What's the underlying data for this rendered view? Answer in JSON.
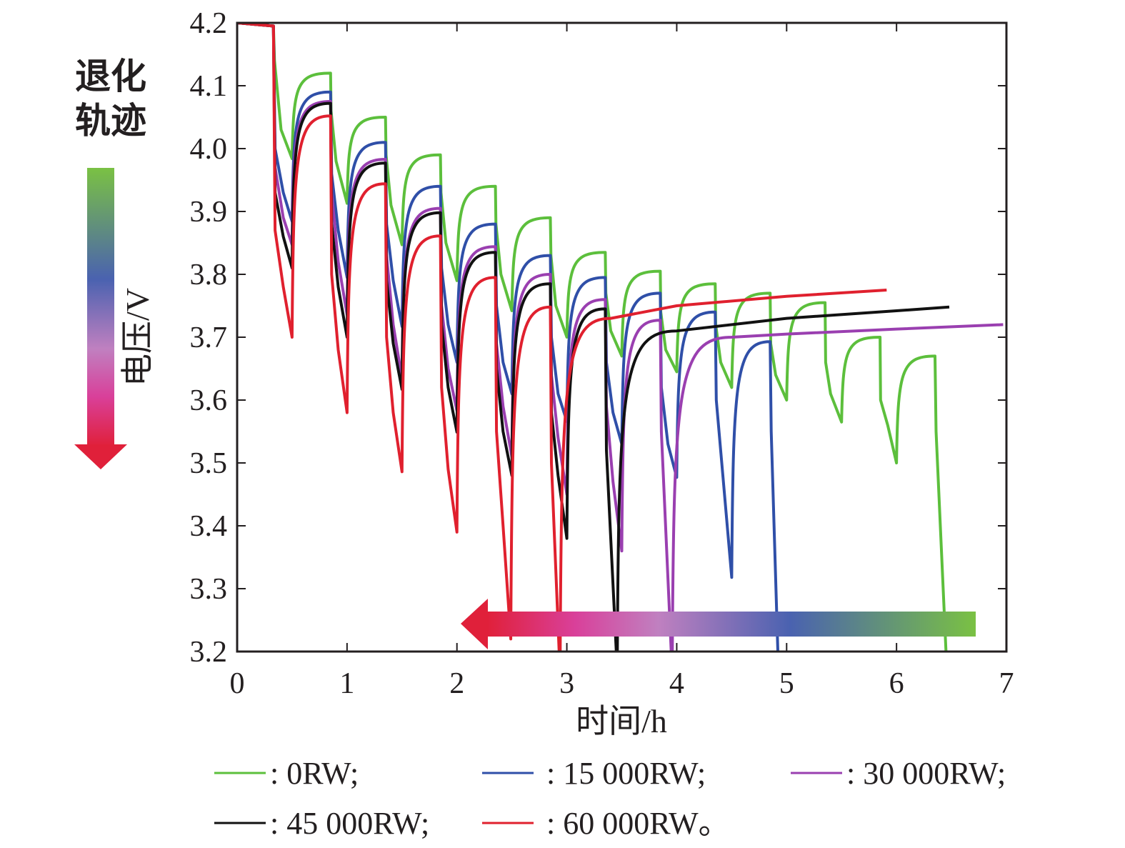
{
  "chart_data": {
    "type": "line",
    "xlabel": "时间/h",
    "ylabel": "电压/V",
    "xlim": [
      0,
      7
    ],
    "ylim": [
      3.2,
      4.2
    ],
    "x_ticks": [
      "0",
      "1",
      "2",
      "3",
      "4",
      "5",
      "6",
      "7"
    ],
    "y_ticks": [
      "3.2",
      "3.3",
      "3.4",
      "3.5",
      "3.6",
      "3.7",
      "3.8",
      "3.9",
      "4.0",
      "4.1",
      "4.2"
    ],
    "grid": false,
    "legend_position": "bottom",
    "annotations": {
      "degradation_label": [
        "退化",
        "轨迹"
      ],
      "gradient_colors": [
        "#e0203a",
        "#d9409a",
        "#c080c0",
        "#4a62b0",
        "#7ac143"
      ]
    },
    "series": [
      {
        "name": "0RW",
        "legend_label": ": 0RW;",
        "color": "#5cbf3c",
        "points": [
          [
            0,
            4.2
          ],
          [
            0.33,
            4.195
          ],
          [
            0.34,
            4.14
          ],
          [
            0.4,
            4.03
          ],
          [
            0.5,
            3.984
          ],
          [
            0.85,
            4.12
          ],
          [
            0.855,
            4.06
          ],
          [
            0.9,
            3.98
          ],
          [
            1.0,
            3.913
          ],
          [
            1.35,
            4.05
          ],
          [
            1.355,
            3.99
          ],
          [
            1.4,
            3.91
          ],
          [
            1.5,
            3.847
          ],
          [
            1.85,
            3.99
          ],
          [
            1.855,
            3.93
          ],
          [
            1.9,
            3.85
          ],
          [
            2.0,
            3.79
          ],
          [
            2.35,
            3.94
          ],
          [
            2.355,
            3.88
          ],
          [
            2.4,
            3.8
          ],
          [
            2.5,
            3.742
          ],
          [
            2.85,
            3.89
          ],
          [
            2.855,
            3.83
          ],
          [
            2.9,
            3.75
          ],
          [
            3.0,
            3.7
          ],
          [
            3.35,
            3.835
          ],
          [
            3.355,
            3.77
          ],
          [
            3.4,
            3.71
          ],
          [
            3.5,
            3.67
          ],
          [
            3.85,
            3.805
          ],
          [
            3.855,
            3.74
          ],
          [
            3.9,
            3.68
          ],
          [
            4.0,
            3.645
          ],
          [
            4.35,
            3.785
          ],
          [
            4.355,
            3.72
          ],
          [
            4.4,
            3.66
          ],
          [
            4.5,
            3.62
          ],
          [
            4.85,
            3.77
          ],
          [
            4.855,
            3.69
          ],
          [
            4.9,
            3.64
          ],
          [
            5.0,
            3.6
          ],
          [
            5.35,
            3.755
          ],
          [
            5.355,
            3.66
          ],
          [
            5.4,
            3.61
          ],
          [
            5.5,
            3.565
          ],
          [
            5.85,
            3.7
          ],
          [
            5.855,
            3.6
          ],
          [
            5.92,
            3.56
          ],
          [
            6.0,
            3.5
          ],
          [
            6.35,
            3.67
          ],
          [
            6.36,
            3.55
          ],
          [
            6.45,
            3.2
          ]
        ]
      },
      {
        "name": "15 000RW",
        "legend_label": ": 15 000RW;",
        "color": "#2f4fa8",
        "points": [
          [
            0,
            4.2
          ],
          [
            0.33,
            4.195
          ],
          [
            0.345,
            4.0
          ],
          [
            0.42,
            3.93
          ],
          [
            0.5,
            3.884
          ],
          [
            0.85,
            4.09
          ],
          [
            0.86,
            3.96
          ],
          [
            0.92,
            3.87
          ],
          [
            1.0,
            3.795
          ],
          [
            1.35,
            4.01
          ],
          [
            1.36,
            3.88
          ],
          [
            1.42,
            3.79
          ],
          [
            1.5,
            3.717
          ],
          [
            1.85,
            3.94
          ],
          [
            1.86,
            3.81
          ],
          [
            1.92,
            3.72
          ],
          [
            2.0,
            3.66
          ],
          [
            2.35,
            3.88
          ],
          [
            2.36,
            3.75
          ],
          [
            2.42,
            3.66
          ],
          [
            2.5,
            3.61
          ],
          [
            2.85,
            3.83
          ],
          [
            2.86,
            3.7
          ],
          [
            2.92,
            3.61
          ],
          [
            3.0,
            3.566
          ],
          [
            3.35,
            3.795
          ],
          [
            3.36,
            3.66
          ],
          [
            3.42,
            3.58
          ],
          [
            3.5,
            3.53
          ],
          [
            3.85,
            3.77
          ],
          [
            3.86,
            3.62
          ],
          [
            3.92,
            3.53
          ],
          [
            4.0,
            3.477
          ],
          [
            4.35,
            3.74
          ],
          [
            4.36,
            3.6
          ],
          [
            4.42,
            3.48
          ],
          [
            4.5,
            3.318
          ],
          [
            4.85,
            3.693
          ],
          [
            4.86,
            3.55
          ],
          [
            4.92,
            3.2
          ]
        ]
      },
      {
        "name": "30 000RW",
        "legend_label": ": 30 000RW;",
        "color": "#9a3fb0",
        "points": [
          [
            0,
            4.2
          ],
          [
            0.33,
            4.195
          ],
          [
            0.345,
            3.97
          ],
          [
            0.42,
            3.89
          ],
          [
            0.5,
            3.847
          ],
          [
            0.85,
            4.075
          ],
          [
            0.86,
            3.93
          ],
          [
            0.92,
            3.82
          ],
          [
            1.0,
            3.736
          ],
          [
            1.35,
            3.983
          ],
          [
            1.36,
            3.83
          ],
          [
            1.42,
            3.72
          ],
          [
            1.5,
            3.634
          ],
          [
            1.85,
            3.905
          ],
          [
            1.86,
            3.75
          ],
          [
            1.92,
            3.65
          ],
          [
            2.0,
            3.583
          ],
          [
            2.35,
            3.844
          ],
          [
            2.36,
            3.69
          ],
          [
            2.42,
            3.59
          ],
          [
            2.5,
            3.51
          ],
          [
            2.85,
            3.8
          ],
          [
            2.86,
            3.64
          ],
          [
            2.92,
            3.54
          ],
          [
            3.0,
            3.45
          ],
          [
            3.35,
            3.76
          ],
          [
            3.36,
            3.59
          ],
          [
            3.42,
            3.47
          ],
          [
            3.5,
            3.36
          ],
          [
            3.85,
            3.727
          ],
          [
            3.86,
            3.55
          ],
          [
            3.95,
            3.2
          ],
          [
            3.96,
            3.2
          ],
          [
            4.5,
            3.7
          ],
          [
            5.0,
            3.705
          ],
          [
            6.0,
            3.713
          ],
          [
            6.97,
            3.72
          ]
        ]
      },
      {
        "name": "45 000RW",
        "legend_label": ": 45 000RW;",
        "color": "#111111",
        "points": [
          [
            0,
            4.2
          ],
          [
            0.33,
            4.195
          ],
          [
            0.345,
            3.93
          ],
          [
            0.42,
            3.86
          ],
          [
            0.5,
            3.81
          ],
          [
            0.85,
            4.072
          ],
          [
            0.86,
            3.88
          ],
          [
            0.92,
            3.78
          ],
          [
            1.0,
            3.7
          ],
          [
            1.35,
            3.977
          ],
          [
            1.36,
            3.79
          ],
          [
            1.42,
            3.69
          ],
          [
            1.5,
            3.617
          ],
          [
            1.85,
            3.898
          ],
          [
            1.86,
            3.72
          ],
          [
            1.92,
            3.62
          ],
          [
            2.0,
            3.549
          ],
          [
            2.35,
            3.835
          ],
          [
            2.36,
            3.65
          ],
          [
            2.42,
            3.55
          ],
          [
            2.5,
            3.48
          ],
          [
            2.85,
            3.785
          ],
          [
            2.86,
            3.58
          ],
          [
            2.92,
            3.48
          ],
          [
            3.0,
            3.38
          ],
          [
            3.35,
            3.745
          ],
          [
            3.36,
            3.52
          ],
          [
            3.45,
            3.2
          ],
          [
            3.46,
            3.2
          ],
          [
            4.0,
            3.71
          ],
          [
            5.0,
            3.73
          ],
          [
            6.0,
            3.742
          ],
          [
            6.48,
            3.748
          ]
        ]
      },
      {
        "name": "60 000RW",
        "legend_label": ": 60 000RW。",
        "color": "#e0202e",
        "points": [
          [
            0,
            4.2
          ],
          [
            0.33,
            4.195
          ],
          [
            0.345,
            3.87
          ],
          [
            0.42,
            3.78
          ],
          [
            0.5,
            3.7
          ],
          [
            0.85,
            4.052
          ],
          [
            0.86,
            3.8
          ],
          [
            0.92,
            3.68
          ],
          [
            1.0,
            3.58
          ],
          [
            1.35,
            3.944
          ],
          [
            1.36,
            3.7
          ],
          [
            1.42,
            3.58
          ],
          [
            1.5,
            3.486
          ],
          [
            1.85,
            3.861
          ],
          [
            1.86,
            3.62
          ],
          [
            1.92,
            3.49
          ],
          [
            2.0,
            3.39
          ],
          [
            2.35,
            3.795
          ],
          [
            2.36,
            3.55
          ],
          [
            2.42,
            3.4
          ],
          [
            2.49,
            3.22
          ],
          [
            2.85,
            3.748
          ],
          [
            2.86,
            3.5
          ],
          [
            2.93,
            3.2
          ],
          [
            2.94,
            3.2
          ],
          [
            3.4,
            3.73
          ],
          [
            4.0,
            3.75
          ],
          [
            5.0,
            3.765
          ],
          [
            5.91,
            3.775
          ]
        ]
      }
    ]
  }
}
